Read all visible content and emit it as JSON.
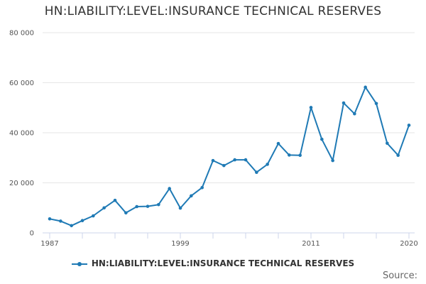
{
  "chart_data": {
    "type": "line",
    "title": "HN:LIABILITY:LEVEL:INSURANCE TECHNICAL RESERVES",
    "xlabel": "",
    "ylabel": "",
    "x": [
      1987,
      1988,
      1989,
      1990,
      1991,
      1992,
      1993,
      1994,
      1995,
      1996,
      1997,
      1998,
      1999,
      2000,
      2001,
      2002,
      2003,
      2004,
      2005,
      2006,
      2007,
      2008,
      2009,
      2010,
      2011,
      2012,
      2013,
      2014,
      2015,
      2016,
      2017,
      2018,
      2019,
      2020
    ],
    "series": [
      {
        "name": "HN:LIABILITY:LEVEL:INSURANCE TECHNICAL RESERVES",
        "color": "#1f7ab5",
        "values": [
          5600,
          4700,
          2900,
          4900,
          6800,
          10000,
          13000,
          8000,
          10500,
          10600,
          11300,
          17700,
          9900,
          14800,
          18100,
          28900,
          26900,
          29200,
          29200,
          24200,
          27400,
          35700,
          31100,
          31000,
          50100,
          37400,
          28900,
          51900,
          47600,
          58200,
          51700,
          35800,
          31000,
          43000
        ]
      }
    ],
    "xticks": [
      "1987",
      "1999",
      "2011",
      "2020"
    ],
    "yticks": [
      "0",
      "20 000",
      "40 000",
      "60 000",
      "80 000"
    ],
    "ylim": [
      0,
      80000
    ],
    "grid": true,
    "legend_position": "bottom"
  },
  "source_label": "Source:"
}
